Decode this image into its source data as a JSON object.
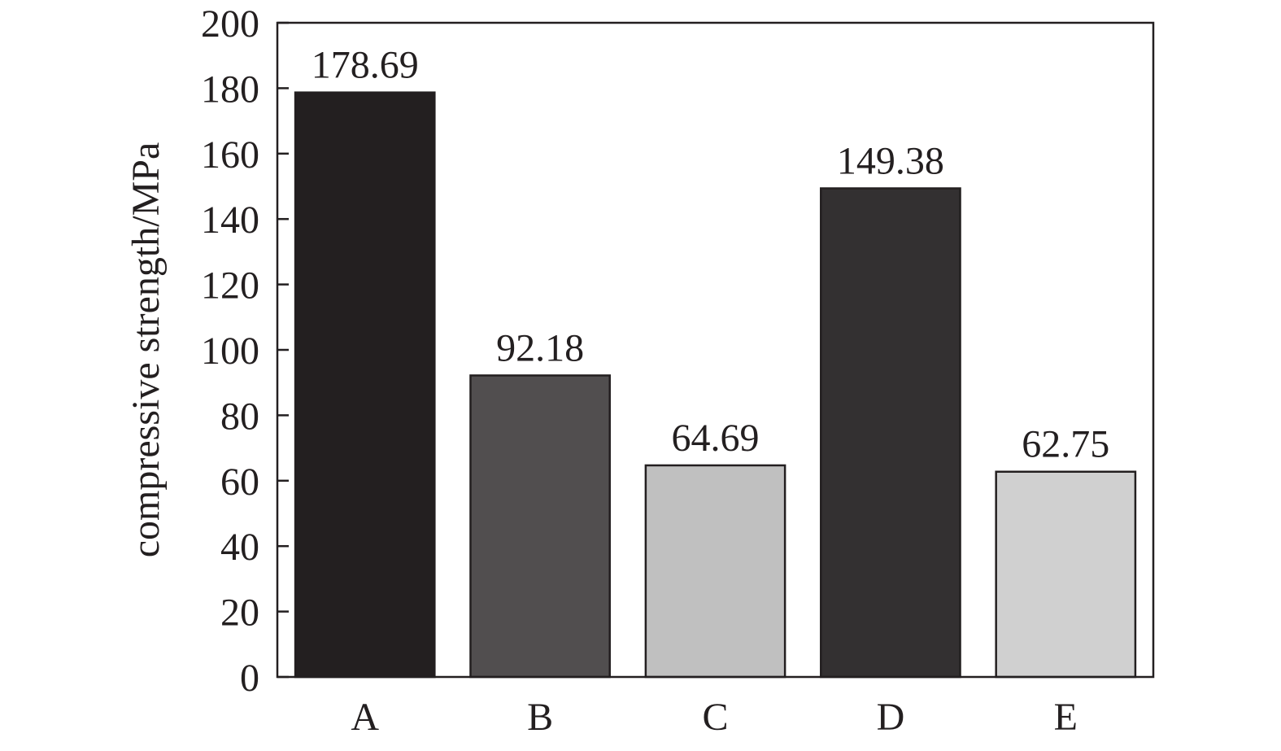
{
  "chart_data": {
    "type": "bar",
    "title": "",
    "xlabel": "",
    "ylabel": "compressive strength/MPa",
    "categories": [
      "A",
      "B",
      "C",
      "D",
      "E"
    ],
    "values": [
      178.69,
      92.18,
      64.69,
      149.38,
      62.75
    ],
    "value_labels": [
      "178.69",
      "92.18",
      "64.69",
      "149.38",
      "62.75"
    ],
    "bar_colors": [
      "#231f20",
      "#514e4f",
      "#c0c0c0",
      "#333031",
      "#d0d0d0"
    ],
    "ylim": [
      0,
      200
    ],
    "yticks": [
      0,
      20,
      40,
      60,
      80,
      100,
      120,
      140,
      160,
      180,
      200
    ],
    "grid": false,
    "legend": "none"
  }
}
